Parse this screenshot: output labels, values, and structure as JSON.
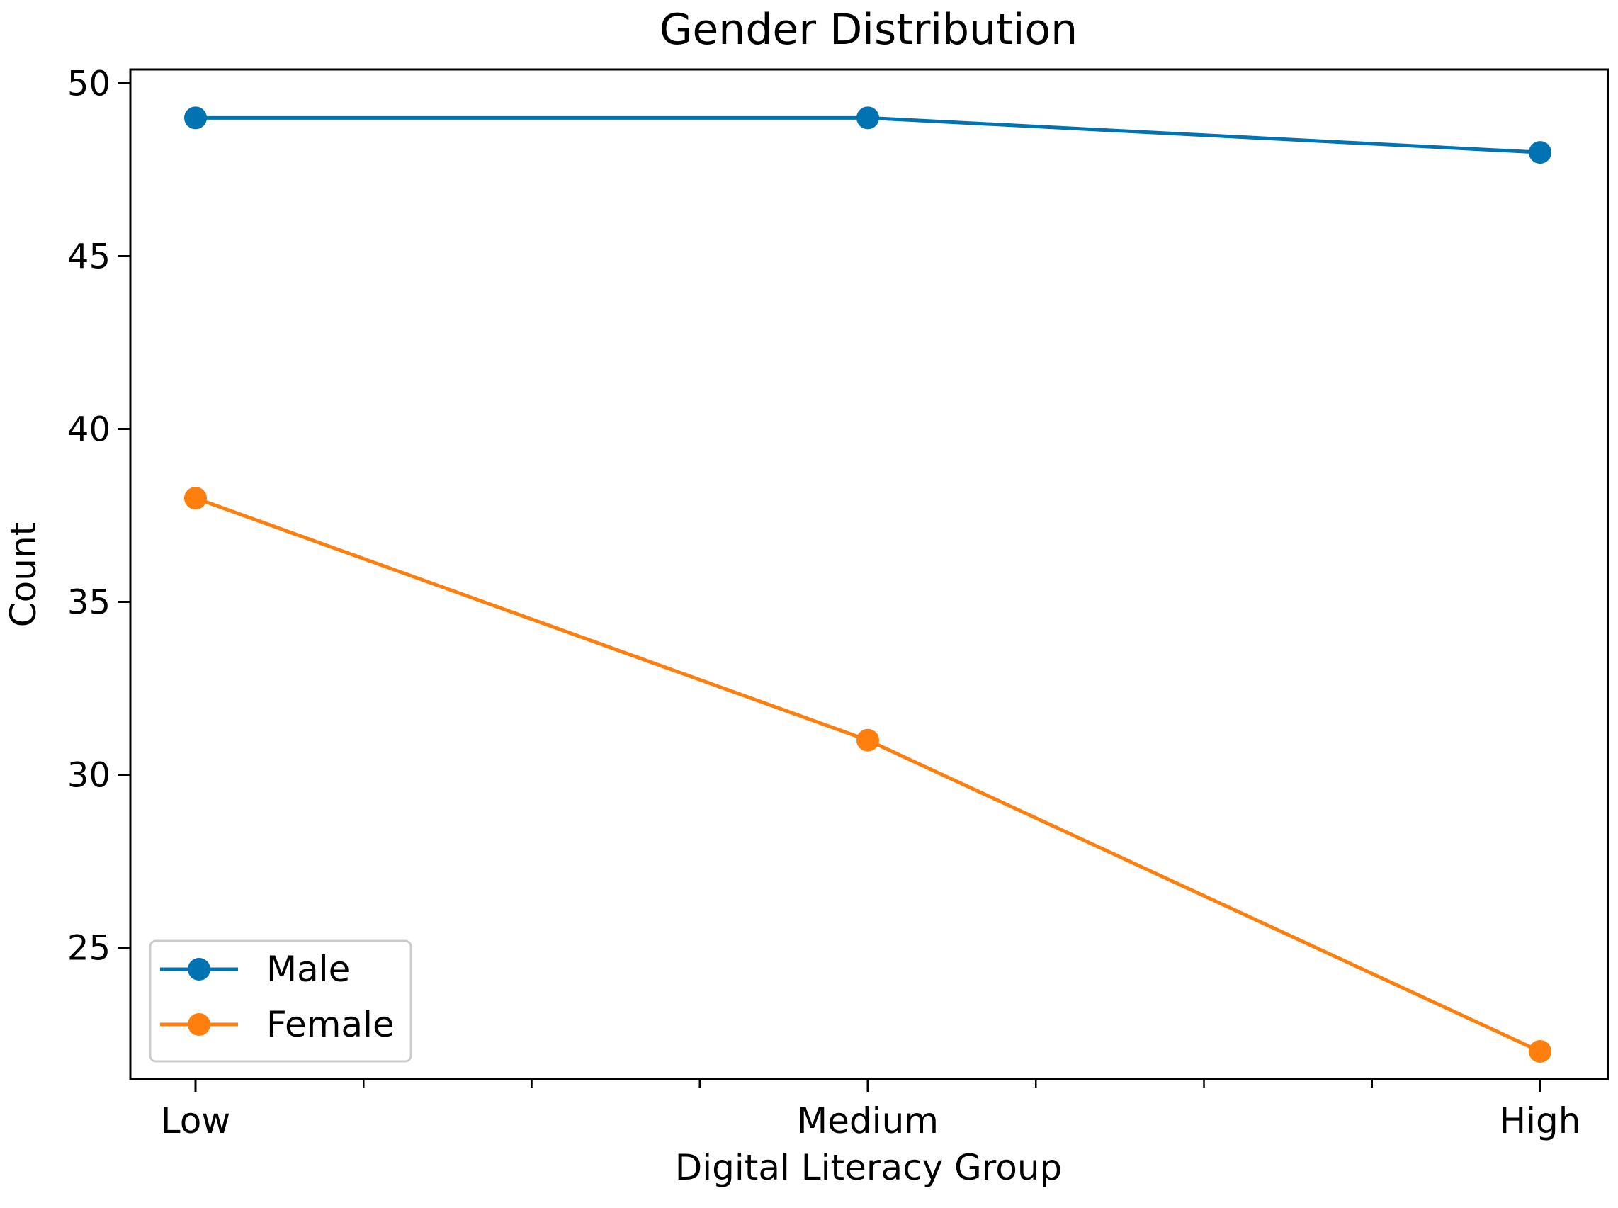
{
  "chart_data": {
    "type": "line",
    "title": "Gender Distribution",
    "xlabel": "Digital Literacy Group",
    "ylabel": "Count",
    "categories": [
      "Low",
      "Medium",
      "High"
    ],
    "ylim": [
      21.2,
      50.4
    ],
    "yticks": [
      25,
      30,
      35,
      40,
      45,
      50
    ],
    "grid": false,
    "legend_position": "lower-left",
    "series": [
      {
        "name": "Male",
        "color": "#0173b2",
        "values": [
          49,
          49,
          48
        ]
      },
      {
        "name": "Female",
        "color": "#ff7f0e",
        "values": [
          38,
          31,
          22
        ]
      }
    ]
  }
}
